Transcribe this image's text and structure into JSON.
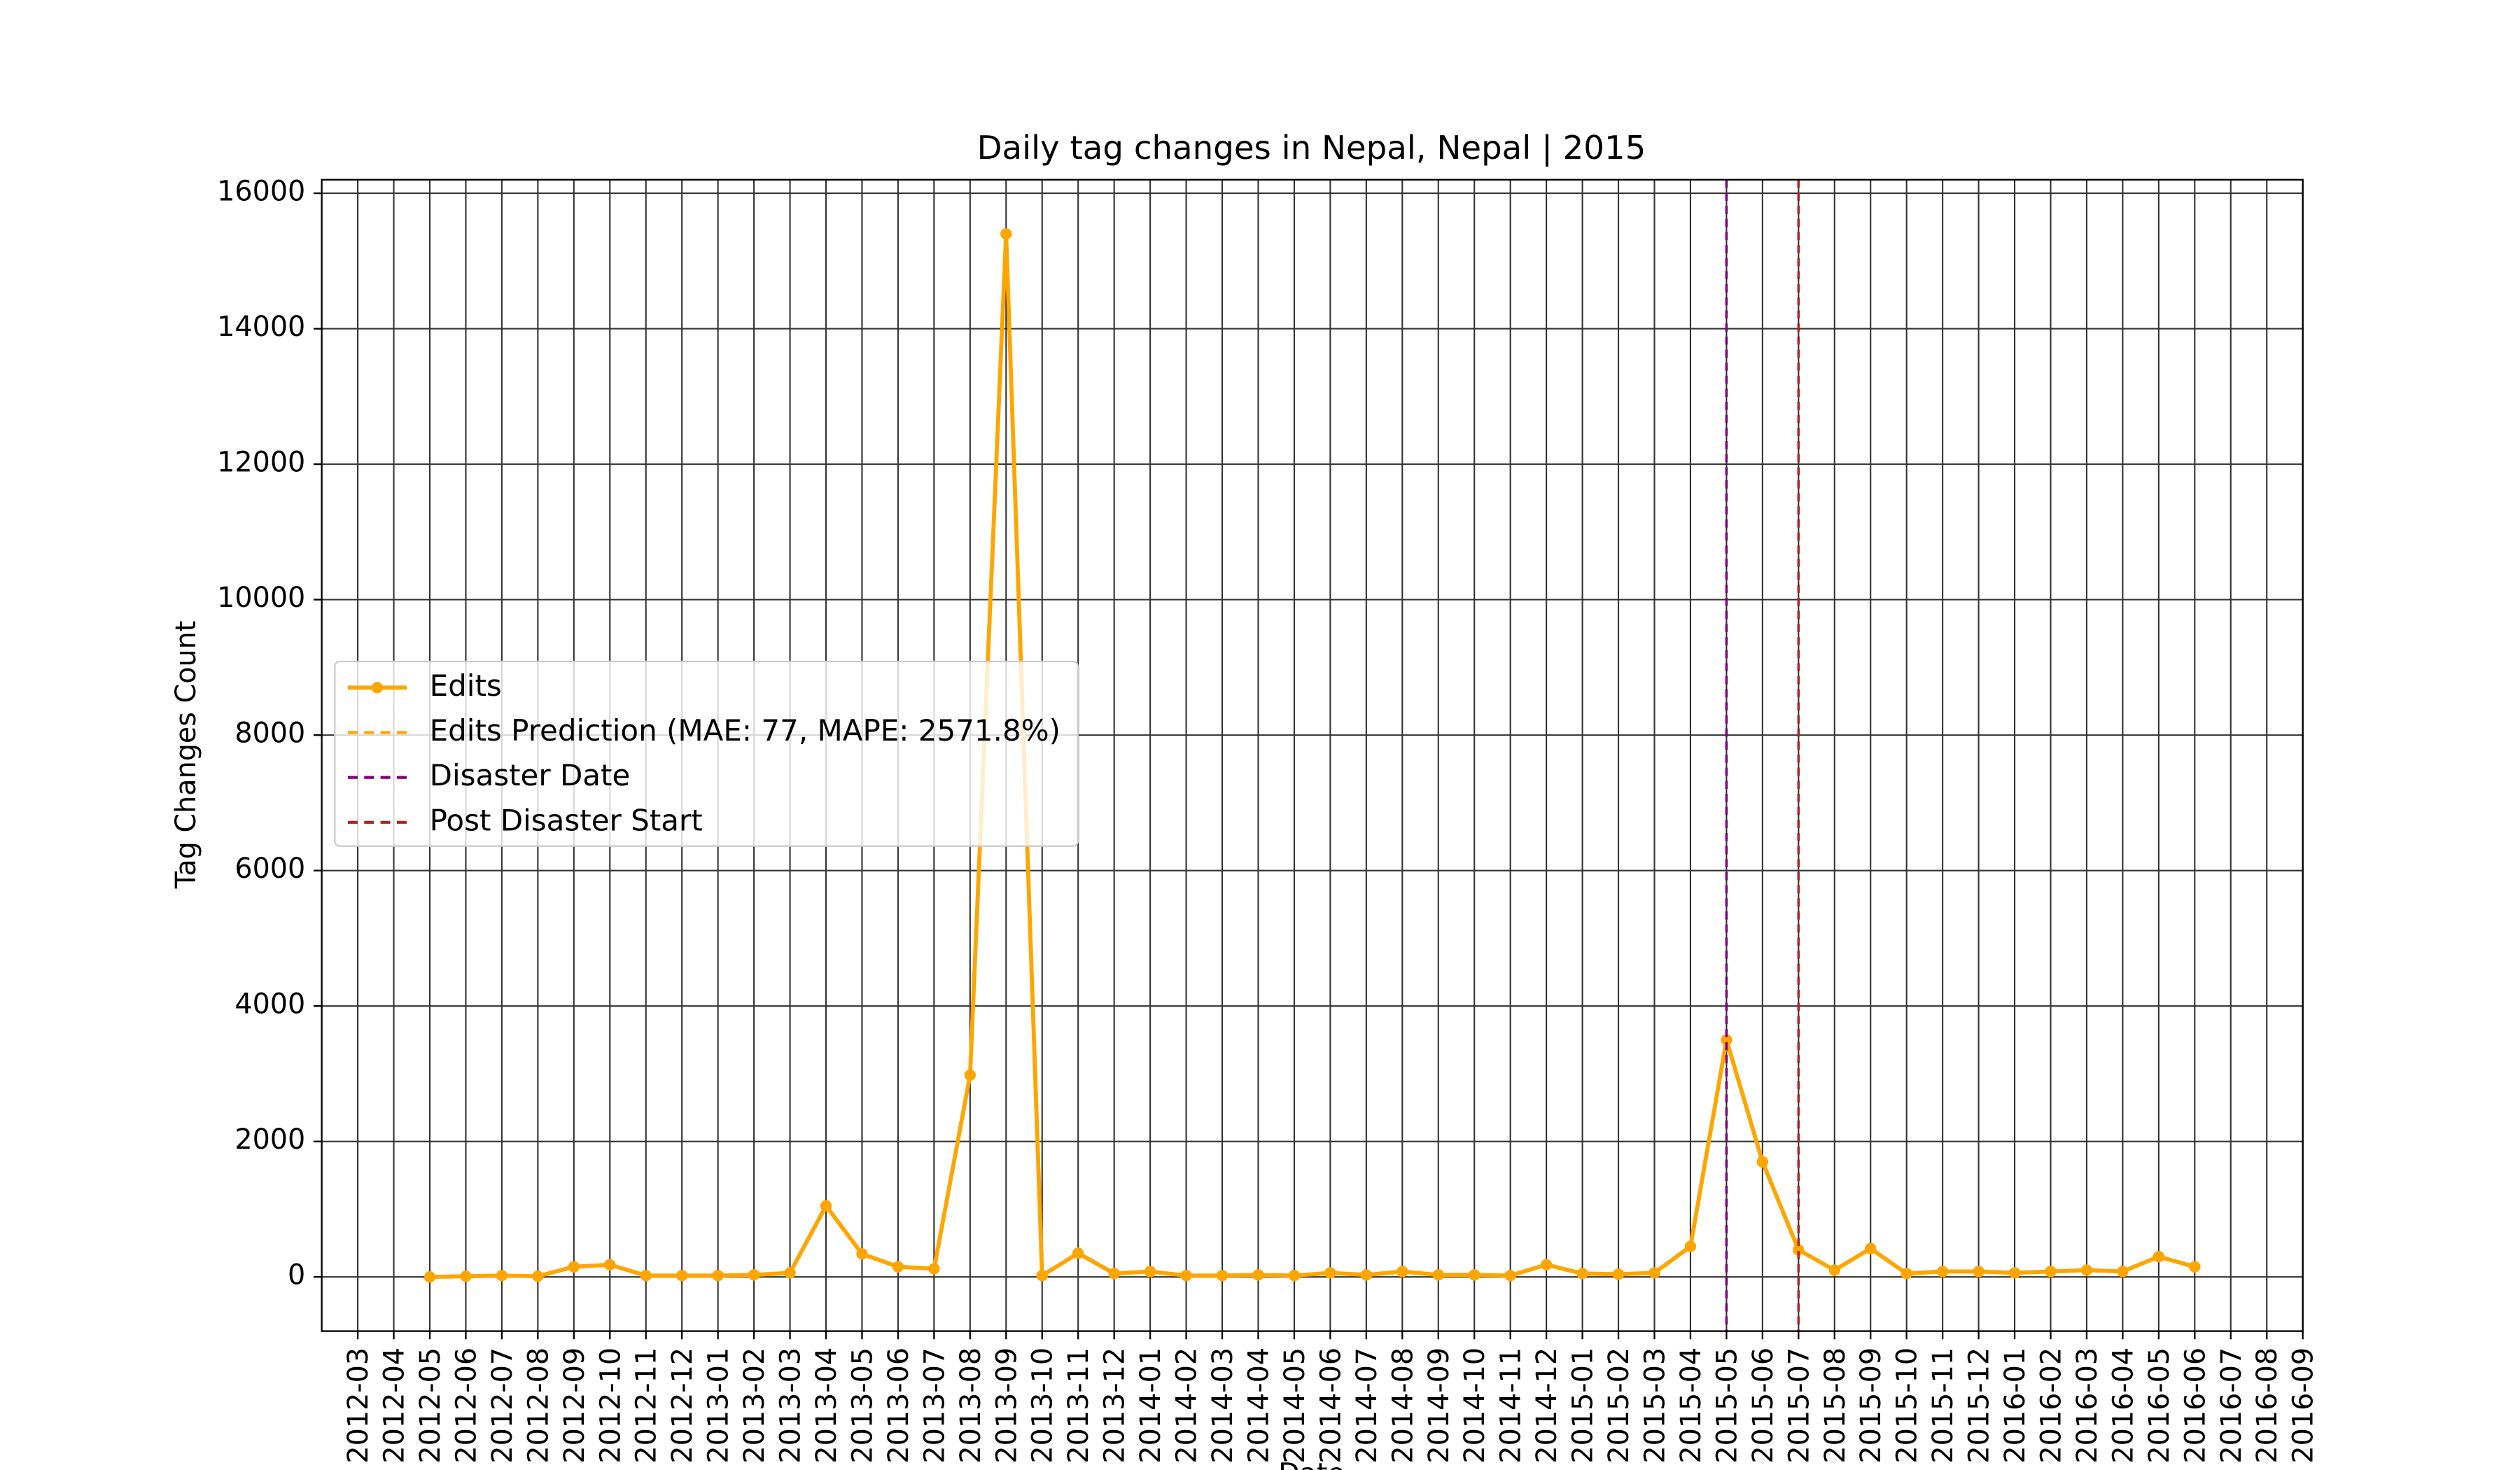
{
  "chart_data": {
    "type": "line",
    "title": "Daily tag changes in Nepal, Nepal | 2015",
    "xlabel": "Date",
    "ylabel": "Tag Changes Count",
    "x": [
      "2012-05",
      "2012-06",
      "2012-07",
      "2012-08",
      "2012-09",
      "2012-10",
      "2012-11",
      "2012-12",
      "2013-01",
      "2013-02",
      "2013-03",
      "2013-04",
      "2013-05",
      "2013-06",
      "2013-07",
      "2013-08",
      "2013-09",
      "2013-10",
      "2013-11",
      "2013-12",
      "2014-01",
      "2014-02",
      "2014-03",
      "2014-04",
      "2014-05",
      "2014-06",
      "2014-07",
      "2014-08",
      "2014-09",
      "2014-10",
      "2014-11",
      "2014-12",
      "2015-01",
      "2015-02",
      "2015-03",
      "2015-04",
      "2015-05",
      "2015-06",
      "2015-07",
      "2015-08",
      "2015-09",
      "2015-10",
      "2015-11",
      "2015-12",
      "2016-01",
      "2016-02",
      "2016-03",
      "2016-04",
      "2016-05",
      "2016-06"
    ],
    "series": [
      {
        "name": "Edits",
        "color": "#ffa500",
        "values": [
          0,
          10,
          20,
          10,
          150,
          180,
          20,
          20,
          20,
          30,
          60,
          1050,
          340,
          150,
          120,
          2980,
          15400,
          20,
          350,
          50,
          80,
          20,
          20,
          30,
          20,
          60,
          30,
          80,
          30,
          30,
          20,
          180,
          50,
          40,
          60,
          450,
          3500,
          1700,
          400,
          100,
          420,
          50,
          80,
          80,
          60,
          80,
          100,
          80,
          300,
          150
        ]
      }
    ],
    "legend": [
      {
        "name": "Edits",
        "color": "#ffa500",
        "style": "solid-marker"
      },
      {
        "name": "Edits Prediction (MAE: 77, MAPE: 2571.8%)",
        "color": "#ffa500",
        "style": "dashed"
      },
      {
        "name": "Disaster Date",
        "color": "#800080",
        "style": "dashed"
      },
      {
        "name": "Post Disaster Start",
        "color": "#b22222",
        "style": "dashed"
      }
    ],
    "vlines": [
      {
        "x": "2015-05",
        "color": "#800080"
      },
      {
        "x": "2015-07",
        "color": "#b22222"
      }
    ],
    "xlim": [
      "2012-02",
      "2016-09"
    ],
    "xticks": [
      "2012-03",
      "2012-04",
      "2012-05",
      "2012-06",
      "2012-07",
      "2012-08",
      "2012-09",
      "2012-10",
      "2012-11",
      "2012-12",
      "2013-01",
      "2013-02",
      "2013-03",
      "2013-04",
      "2013-05",
      "2013-06",
      "2013-07",
      "2013-08",
      "2013-09",
      "2013-10",
      "2013-11",
      "2013-12",
      "2014-01",
      "2014-02",
      "2014-03",
      "2014-04",
      "2014-05",
      "2014-06",
      "2014-07",
      "2014-08",
      "2014-09",
      "2014-10",
      "2014-11",
      "2014-12",
      "2015-01",
      "2015-02",
      "2015-03",
      "2015-04",
      "2015-05",
      "2015-06",
      "2015-07",
      "2015-08",
      "2015-09",
      "2015-10",
      "2015-11",
      "2015-12",
      "2016-01",
      "2016-02",
      "2016-03",
      "2016-04",
      "2016-05",
      "2016-06",
      "2016-07",
      "2016-08",
      "2016-09"
    ],
    "ylim": [
      -800,
      16200
    ],
    "yticks": [
      0,
      2000,
      4000,
      6000,
      8000,
      10000,
      12000,
      14000,
      16000
    ],
    "grid": true
  }
}
